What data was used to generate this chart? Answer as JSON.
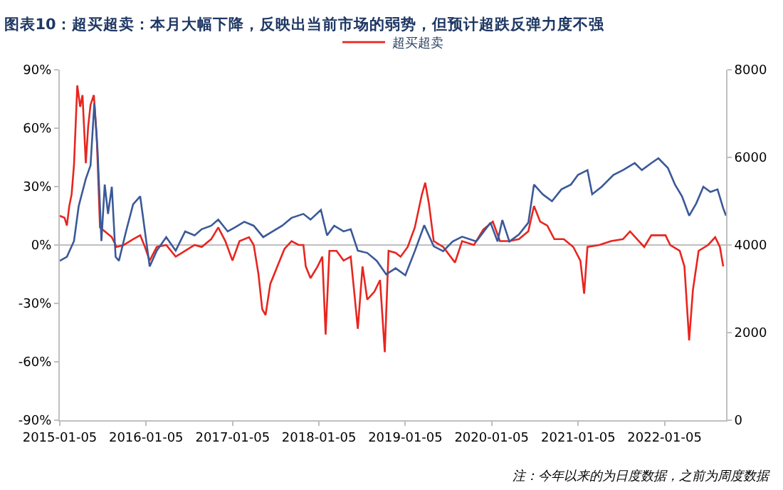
{
  "chart_data": {
    "type": "line",
    "title": "图表10：超买超卖：本月大幅下降，反映出当前市场的弱势，但预计超跌反弹力度不强",
    "annotations": [
      "注：今年以来的为日度数据，之前为周度数据"
    ],
    "legend": "top",
    "xlim": [
      "2015-01-05",
      "2022-09-22"
    ],
    "xticks": [
      {
        "value": "2015-01-05",
        "label": "2015-01-05"
      },
      {
        "value": "2016-01-05",
        "label": "2016-01-05"
      },
      {
        "value": "2017-01-05",
        "label": "2017-01-05"
      },
      {
        "value": "2018-01-05",
        "label": "2018-01-05"
      },
      {
        "value": "2019-01-05",
        "label": "2019-01-05"
      },
      {
        "value": "2020-01-05",
        "label": "2020-01-05"
      },
      {
        "value": "2021-01-05",
        "label": "2021-01-05"
      },
      {
        "value": "2022-01-05",
        "label": "2022-01-05"
      }
    ],
    "ylim": [
      -90,
      90
    ],
    "yticks": [
      {
        "value": -90,
        "label": "-90%"
      },
      {
        "value": -60,
        "label": "-60%"
      },
      {
        "value": -30,
        "label": "-30%"
      },
      {
        "value": 0,
        "label": "0%"
      },
      {
        "value": 30,
        "label": "30%"
      },
      {
        "value": 60,
        "label": "60%"
      },
      {
        "value": 90,
        "label": "90%"
      }
    ],
    "y2lim": [
      0,
      8000
    ],
    "y2ticks": [
      0,
      2000,
      4000,
      6000,
      8000
    ],
    "ref_lines": [
      {
        "axis": "y",
        "value": 0,
        "color": "#bfbfbf"
      }
    ],
    "series": [
      {
        "name": "超买超卖",
        "color": "#e8251f",
        "x": [
          "2015-01-05",
          "2015-01-25",
          "2015-02-04",
          "2015-02-14",
          "2015-02-24",
          "2015-03-06",
          "2015-03-20",
          "2015-04-01",
          "2015-04-11",
          "2015-04-25",
          "2015-05-05",
          "2015-05-15",
          "2015-05-29",
          "2015-06-10",
          "2015-06-24",
          "2015-07-14",
          "2015-08-13",
          "2015-09-02",
          "2015-10-02",
          "2015-11-11",
          "2015-12-11",
          "2015-12-31",
          "2016-01-20",
          "2016-02-19",
          "2016-03-30",
          "2016-05-09",
          "2016-06-18",
          "2016-07-28",
          "2016-08-27",
          "2016-10-06",
          "2016-11-05",
          "2016-12-05",
          "2017-01-04",
          "2017-02-03",
          "2017-03-15",
          "2017-04-04",
          "2017-04-24",
          "2017-05-10",
          "2017-05-24",
          "2017-06-13",
          "2017-07-13",
          "2017-08-12",
          "2017-09-11",
          "2017-10-11",
          "2017-10-31",
          "2017-11-10",
          "2017-11-30",
          "2017-12-30",
          "2018-01-19",
          "2018-02-02",
          "2018-02-18",
          "2018-03-20",
          "2018-04-19",
          "2018-05-19",
          "2018-06-02",
          "2018-06-18",
          "2018-07-08",
          "2018-07-28",
          "2018-08-27",
          "2018-09-20",
          "2018-10-10",
          "2018-10-26",
          "2018-11-25",
          "2018-12-16",
          "2019-01-15",
          "2019-02-14",
          "2019-03-16",
          "2019-03-30",
          "2019-04-15",
          "2019-05-05",
          "2019-06-14",
          "2019-08-03",
          "2019-09-02",
          "2019-10-22",
          "2019-12-01",
          "2020-01-10",
          "2020-02-09",
          "2020-03-20",
          "2020-04-29",
          "2020-06-08",
          "2020-07-02",
          "2020-07-28",
          "2020-08-27",
          "2020-09-26",
          "2020-11-05",
          "2020-12-15",
          "2021-01-14",
          "2021-01-30",
          "2021-02-13",
          "2021-04-04",
          "2021-05-24",
          "2021-07-13",
          "2021-08-12",
          "2021-09-11",
          "2021-10-11",
          "2021-11-10",
          "2022-01-09",
          "2022-01-29",
          "2022-03-10",
          "2022-03-30",
          "2022-04-19",
          "2022-05-05",
          "2022-05-29",
          "2022-07-08",
          "2022-08-07",
          "2022-08-27",
          "2022-09-10"
        ],
        "values": [
          15,
          14,
          10,
          20,
          26,
          41,
          82,
          71,
          77,
          42,
          61,
          72,
          77,
          56,
          9,
          7,
          4,
          -1,
          0,
          3,
          5,
          -1,
          -8,
          -1,
          0,
          -6,
          -3,
          0,
          -1,
          3,
          9,
          2,
          -8,
          2,
          4,
          0,
          -15,
          -33,
          -36,
          -20,
          -11,
          -2,
          2,
          0,
          0,
          -11,
          -17,
          -11,
          -6,
          -46,
          -3,
          -3,
          -8,
          -6,
          -23,
          -43,
          -11,
          -28,
          -24,
          -18,
          -55,
          -3,
          -4,
          -6,
          -1,
          9,
          26,
          32,
          21,
          2,
          -1,
          -9,
          2,
          0,
          8,
          12,
          2,
          2,
          3,
          7,
          20,
          12,
          10,
          3,
          3,
          -1,
          -8,
          -25,
          -1,
          0,
          2,
          3,
          7,
          3,
          -1,
          5,
          5,
          0,
          -3,
          -11,
          -49,
          -23,
          -3,
          0,
          4,
          -1,
          -11
        ]
      },
      {
        "color": "#3b5998",
        "axis": "y2",
        "x": [
          "2015-01-05",
          "2015-02-04",
          "2015-03-06",
          "2015-03-26",
          "2015-04-25",
          "2015-05-15",
          "2015-05-31",
          "2015-06-14",
          "2015-06-30",
          "2015-07-14",
          "2015-07-28",
          "2015-08-13",
          "2015-08-29",
          "2015-09-12",
          "2015-10-12",
          "2015-11-11",
          "2015-12-11",
          "2015-12-31",
          "2016-01-20",
          "2016-02-19",
          "2016-03-30",
          "2016-05-09",
          "2016-06-18",
          "2016-07-28",
          "2016-08-27",
          "2016-10-06",
          "2016-11-05",
          "2016-12-15",
          "2017-01-14",
          "2017-02-23",
          "2017-04-04",
          "2017-05-14",
          "2017-06-23",
          "2017-08-02",
          "2017-09-11",
          "2017-10-31",
          "2017-11-30",
          "2018-01-13",
          "2018-02-08",
          "2018-03-10",
          "2018-04-19",
          "2018-05-19",
          "2018-06-18",
          "2018-07-28",
          "2018-09-06",
          "2018-10-16",
          "2018-11-25",
          "2019-01-05",
          "2019-02-14",
          "2019-03-26",
          "2019-05-05",
          "2019-06-14",
          "2019-07-24",
          "2019-09-02",
          "2019-11-01",
          "2019-12-31",
          "2020-01-30",
          "2020-02-19",
          "2020-03-20",
          "2020-04-29",
          "2020-06-08",
          "2020-07-02",
          "2020-08-07",
          "2020-09-16",
          "2020-10-26",
          "2020-12-05",
          "2021-01-04",
          "2021-02-13",
          "2021-03-05",
          "2021-04-14",
          "2021-06-03",
          "2021-07-13",
          "2021-09-01",
          "2021-10-01",
          "2021-11-10",
          "2021-12-10",
          "2022-01-19",
          "2022-02-18",
          "2022-03-20",
          "2022-04-19",
          "2022-05-19",
          "2022-06-18",
          "2022-07-18",
          "2022-08-17",
          "2022-09-10",
          "2022-09-22"
        ],
        "values": [
          3640,
          3730,
          4090,
          4890,
          5510,
          5820,
          7240,
          6130,
          4090,
          5380,
          4710,
          5330,
          3730,
          3640,
          4310,
          4930,
          5110,
          4310,
          3510,
          3870,
          4180,
          3870,
          4310,
          4220,
          4360,
          4440,
          4580,
          4310,
          4400,
          4530,
          4440,
          4180,
          4310,
          4440,
          4620,
          4710,
          4580,
          4800,
          4220,
          4440,
          4310,
          4360,
          3870,
          3820,
          3640,
          3330,
          3470,
          3310,
          3860,
          4450,
          3970,
          3860,
          4080,
          4190,
          4080,
          4510,
          4080,
          4570,
          4080,
          4240,
          4510,
          5380,
          5160,
          5000,
          5270,
          5380,
          5600,
          5710,
          5160,
          5330,
          5600,
          5710,
          5870,
          5710,
          5870,
          5980,
          5760,
          5380,
          5110,
          4670,
          4950,
          5330,
          5210,
          5270,
          4840,
          4670
        ]
      }
    ]
  }
}
